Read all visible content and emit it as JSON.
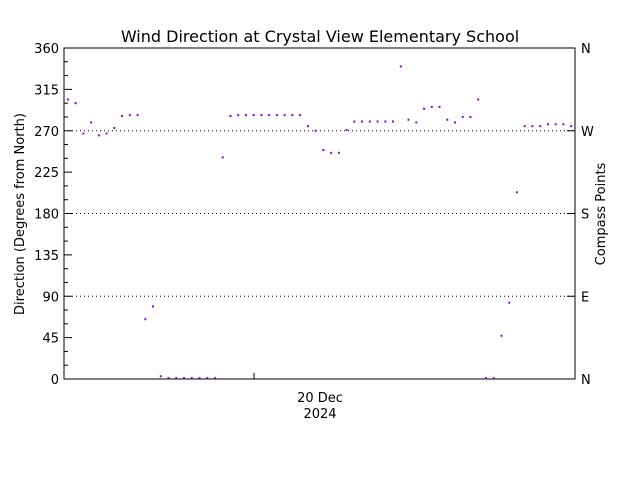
{
  "chart_data": {
    "type": "scatter",
    "title": "Wind Direction at Crystal View Elementary School",
    "ylabel": "Direction (Degrees from North)",
    "ylabel_right": "Compass Points",
    "xlabel": "",
    "x_tick_label": [
      "20 Dec",
      "2024"
    ],
    "ylim": [
      0,
      360
    ],
    "y_ticks": [
      0,
      45,
      90,
      135,
      180,
      225,
      270,
      315,
      360
    ],
    "compass_ticks": [
      {
        "value": 0,
        "label": "N"
      },
      {
        "value": 90,
        "label": "E"
      },
      {
        "value": 180,
        "label": "S"
      },
      {
        "value": 270,
        "label": "W"
      },
      {
        "value": 360,
        "label": "N"
      }
    ],
    "reference_lines": [
      90,
      180,
      270
    ],
    "grid": false,
    "point_color": "#9400d3",
    "series": [
      {
        "x": [
          0.5,
          1.5,
          2.5,
          3.5,
          4.5,
          5.5,
          6.5,
          7.5,
          8.5,
          9.5,
          10.5,
          11.5,
          12.5,
          13.5,
          14.5,
          15.5,
          16.5,
          17.5,
          18.5,
          19.5,
          20.5,
          21.5,
          22.5,
          23.5,
          24.5,
          25.5,
          26.5,
          27.5,
          28.5,
          29.5,
          30.5,
          31.5,
          32.5,
          33.5,
          34.5,
          35.5,
          36.5,
          37.5,
          38.5,
          39.5,
          40.5,
          41.5,
          42.5,
          43.5,
          44.5,
          45.5,
          46.5,
          47.5,
          48.5,
          49.5,
          50.5,
          51.5,
          52.5,
          53.5,
          54.5,
          55.5,
          56.5,
          57.5,
          58.5,
          59.5,
          60.5,
          61.5,
          62.5,
          63.5,
          64.5,
          65.5
        ],
        "values": [
          304,
          300,
          267,
          279,
          265,
          267,
          273,
          286,
          287,
          287,
          65,
          79,
          3,
          1,
          1,
          1,
          1,
          1,
          1,
          1,
          241,
          286,
          287,
          287,
          287,
          287,
          287,
          287,
          287,
          287,
          287,
          275,
          270,
          249,
          246,
          246,
          271,
          280,
          280,
          280,
          280,
          280,
          280,
          340,
          282,
          279,
          294,
          296,
          296,
          282,
          279,
          285,
          285,
          304,
          1,
          1,
          47,
          83,
          203,
          275,
          275,
          275,
          277,
          277,
          277,
          275
        ]
      }
    ]
  }
}
